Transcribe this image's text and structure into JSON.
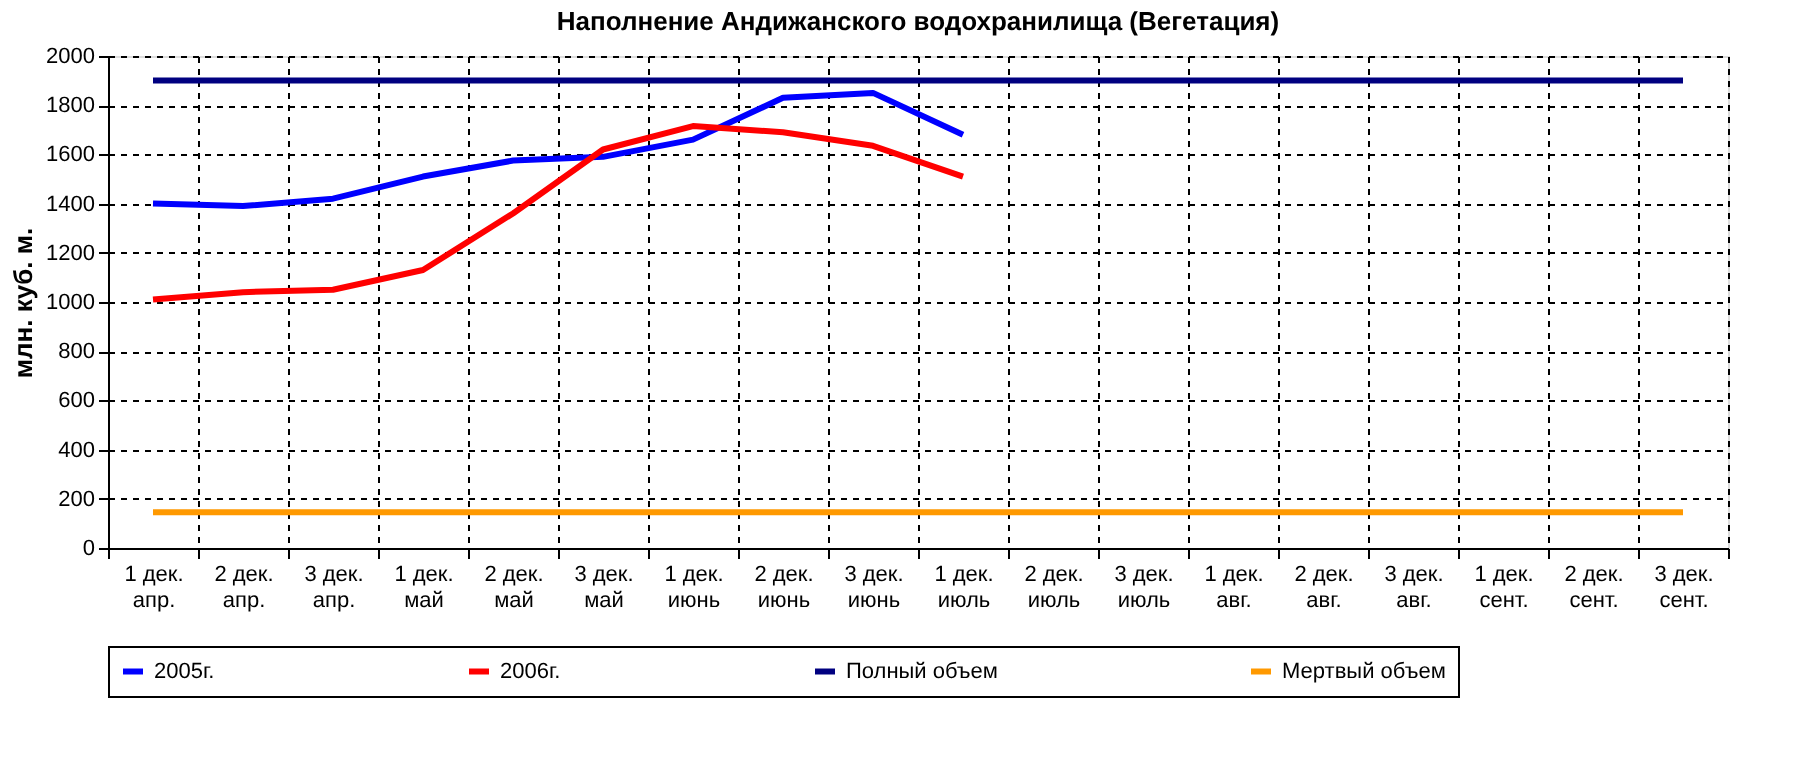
{
  "chart_data": {
    "type": "line",
    "title": "Наполнение Андижанского водохранилища (Вегетация)",
    "ylabel": "млн. куб. м.",
    "categories": [
      "1 дек.\nапр.",
      "2 дек.\nапр.",
      "3 дек.\nапр.",
      "1 дек.\nмай",
      "2 дек.\nмай",
      "3 дек.\nмай",
      "1 дек.\nиюнь",
      "2 дек.\nиюнь",
      "3 дек.\nиюнь",
      "1 дек.\nиюль",
      "2 дек.\nиюль",
      "3 дек.\nиюль",
      "1 дек.\nавг.",
      "2 дек.\nавг.",
      "3 дек.\nавг.",
      "1 дек.\nсент.",
      "2 дек.\nсент.",
      "3 дек.\nсент."
    ],
    "series": [
      {
        "name": "2005г.",
        "color": "#0000ff",
        "values": [
          1400,
          1390,
          1420,
          1510,
          1575,
          1590,
          1660,
          1830,
          1850,
          1680,
          null,
          null,
          null,
          null,
          null,
          null,
          null,
          null
        ]
      },
      {
        "name": "2006г.",
        "color": "#ff0000",
        "values": [
          1010,
          1040,
          1050,
          1130,
          1360,
          1620,
          1715,
          1690,
          1635,
          1510,
          null,
          null,
          null,
          null,
          null,
          null,
          null,
          null
        ]
      },
      {
        "name": "Полный объем",
        "color": "#000080",
        "values": [
          1900,
          1900,
          1900,
          1900,
          1900,
          1900,
          1900,
          1900,
          1900,
          1900,
          1900,
          1900,
          1900,
          1900,
          1900,
          1900,
          1900,
          1900
        ]
      },
      {
        "name": "Мертвый объем",
        "color": "#ff9900",
        "values": [
          145,
          145,
          145,
          145,
          145,
          145,
          145,
          145,
          145,
          145,
          145,
          145,
          145,
          145,
          145,
          145,
          145,
          145
        ]
      }
    ],
    "ylim": [
      0,
      2000
    ],
    "yticks": [
      0,
      200,
      400,
      600,
      800,
      1000,
      1200,
      1400,
      1600,
      1800,
      2000
    ],
    "grid": true,
    "legend": "bottom",
    "marker": "none",
    "line_style": "solid"
  }
}
